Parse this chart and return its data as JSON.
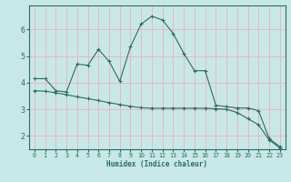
{
  "title": "",
  "xlabel": "Humidex (Indice chaleur)",
  "bg_color": "#c8e8e8",
  "plot_bg_color": "#c8e8e8",
  "line_color": "#2d6b5e",
  "grid_color": "#f0b0b0",
  "xlim": [
    -0.5,
    23.5
  ],
  "ylim": [
    1.5,
    6.9
  ],
  "x_ticks": [
    0,
    1,
    2,
    3,
    4,
    5,
    6,
    7,
    8,
    9,
    10,
    11,
    12,
    13,
    14,
    15,
    16,
    17,
    18,
    19,
    20,
    21,
    22,
    23
  ],
  "y_ticks": [
    2,
    3,
    4,
    5,
    6
  ],
  "line1_x": [
    0,
    1,
    2,
    3,
    4,
    5,
    6,
    7,
    8,
    9,
    10,
    11,
    12,
    13,
    14,
    15,
    16,
    17,
    18,
    19,
    20,
    21,
    22,
    23
  ],
  "line1_y": [
    4.15,
    4.15,
    3.7,
    3.65,
    4.7,
    4.65,
    5.25,
    4.8,
    4.05,
    5.35,
    6.2,
    6.5,
    6.35,
    5.85,
    5.1,
    4.45,
    4.45,
    3.15,
    3.1,
    3.05,
    3.05,
    2.95,
    1.9,
    1.6
  ],
  "line2_x": [
    0,
    1,
    2,
    3,
    4,
    5,
    6,
    7,
    8,
    9,
    10,
    11,
    12,
    13,
    14,
    15,
    16,
    17,
    18,
    19,
    20,
    21,
    22,
    23
  ],
  "line2_y": [
    3.7,
    3.68,
    3.62,
    3.55,
    3.47,
    3.4,
    3.33,
    3.25,
    3.18,
    3.11,
    3.06,
    3.04,
    3.04,
    3.04,
    3.04,
    3.04,
    3.04,
    3.02,
    3.0,
    2.88,
    2.65,
    2.42,
    1.85,
    1.55
  ]
}
